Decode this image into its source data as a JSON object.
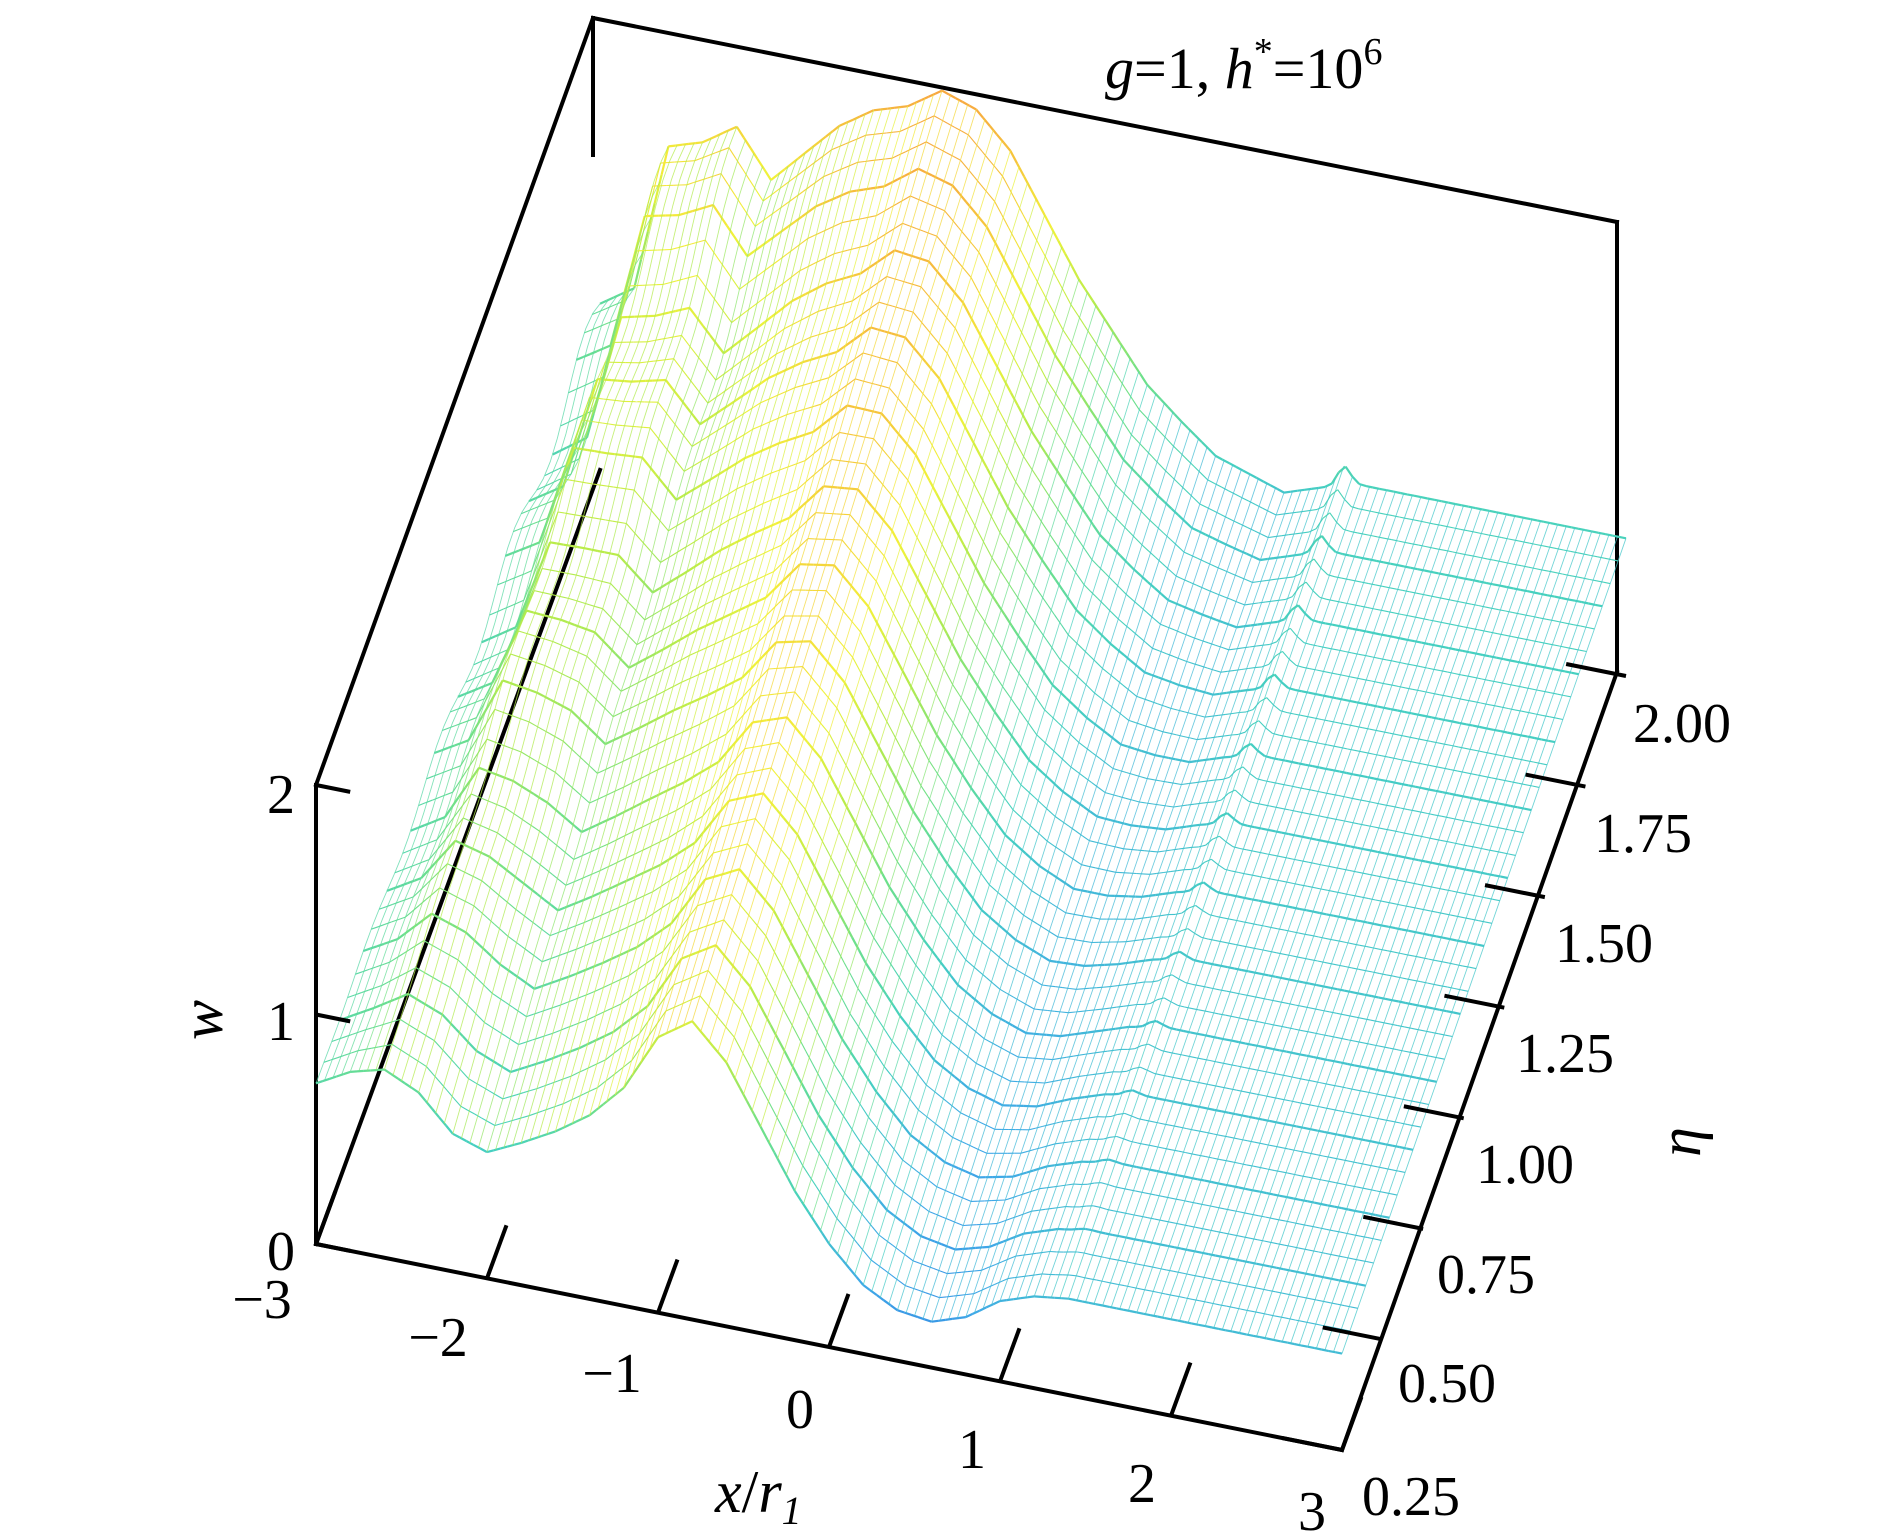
{
  "chart_data": {
    "type": "surface",
    "annotation": {
      "g_label": "g",
      "g_value": "=1, ",
      "h_label": "h",
      "h_sup": "*",
      "h_value": "=10",
      "h_exp": "6"
    },
    "xlabel_main": "x",
    "xlabel_sep": "/",
    "xlabel_r": "r",
    "xlabel_sub": "1",
    "ylabel": "η",
    "zlabel": "w",
    "x_ticks": [
      "−3",
      "−2",
      "−1",
      "0",
      "1",
      "2",
      "3"
    ],
    "y_ticks": [
      "0.25",
      "0.50",
      "0.75",
      "1.00",
      "1.25",
      "1.50",
      "1.75",
      "2.00"
    ],
    "z_ticks": [
      "0",
      "1",
      "2"
    ],
    "xlim": [
      -3,
      3
    ],
    "ylim": [
      0.25,
      2.0
    ],
    "zlim": [
      0,
      2
    ],
    "grid": false,
    "legend": "none",
    "surface_profile": {
      "x": [
        -3.0,
        -2.8,
        -2.6,
        -2.4,
        -2.2,
        -2.0,
        -1.8,
        -1.6,
        -1.4,
        -1.2,
        -1.0,
        -0.8,
        -0.6,
        -0.4,
        -0.2,
        0.0,
        0.2,
        0.4,
        0.6,
        0.8,
        1.0,
        1.2,
        1.4,
        1.6,
        1.8,
        2.0,
        2.2,
        2.4,
        2.6,
        2.8,
        3.0
      ],
      "w_at_eta_2": [
        0.7,
        0.8,
        1.45,
        1.5,
        1.6,
        1.4,
        1.55,
        1.7,
        1.8,
        1.85,
        1.95,
        1.9,
        1.75,
        1.5,
        1.25,
        1.05,
        0.85,
        0.72,
        0.6,
        0.55,
        0.5,
        0.55,
        0.6,
        0.6,
        0.6,
        0.6,
        0.6,
        0.6,
        0.6,
        0.6,
        0.6
      ],
      "w_at_eta_0_25": [
        0.7,
        0.78,
        0.82,
        0.75,
        0.6,
        0.55,
        0.62,
        0.7,
        0.8,
        0.95,
        1.2,
        1.3,
        1.15,
        0.9,
        0.65,
        0.45,
        0.3,
        0.22,
        0.2,
        0.25,
        0.35,
        0.4,
        0.42,
        0.42,
        0.42,
        0.42,
        0.42,
        0.42,
        0.42,
        0.42,
        0.42
      ]
    },
    "colormap": [
      "#2a6fe0",
      "#3fa8e8",
      "#45d0c0",
      "#6ee08a",
      "#b8ec4a",
      "#f2f23a",
      "#f6c23c",
      "#f7a040"
    ]
  }
}
